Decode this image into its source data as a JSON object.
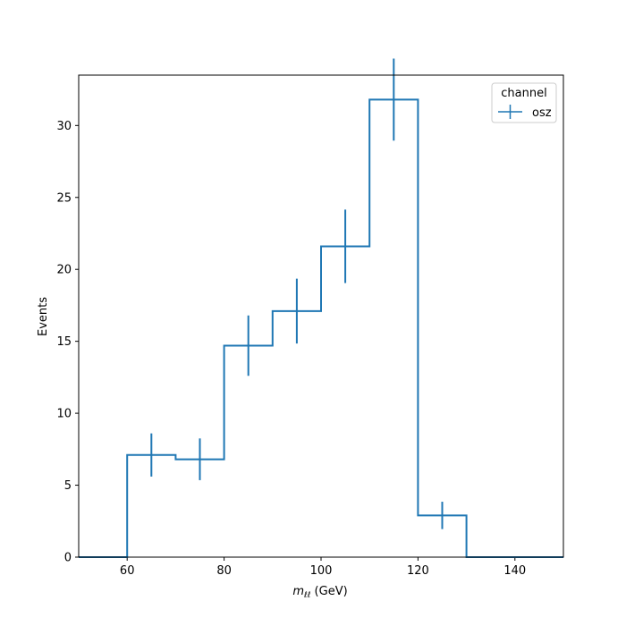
{
  "chart_data": {
    "type": "histogram",
    "xlabel_main": "m",
    "xlabel_sub": "ℓℓ",
    "xlabel_unit": " (GeV)",
    "ylabel": "Events",
    "xlim": [
      50,
      150
    ],
    "ylim": [
      0,
      33.5
    ],
    "x_ticks": [
      60,
      80,
      100,
      120,
      140
    ],
    "y_ticks": [
      0,
      5,
      10,
      15,
      20,
      25,
      30
    ],
    "bin_edges": [
      50,
      60,
      70,
      80,
      90,
      100,
      110,
      120,
      130,
      140,
      150
    ],
    "series": [
      {
        "name": "osz",
        "values": [
          0,
          7.1,
          6.8,
          14.7,
          17.1,
          21.6,
          31.8,
          2.9,
          0,
          0
        ],
        "errors": [
          0,
          1.5,
          1.45,
          2.1,
          2.25,
          2.55,
          2.85,
          0.95,
          0,
          0
        ],
        "color": "#1f77b4"
      }
    ],
    "legend": {
      "title": "channel",
      "position": "top-right"
    }
  }
}
